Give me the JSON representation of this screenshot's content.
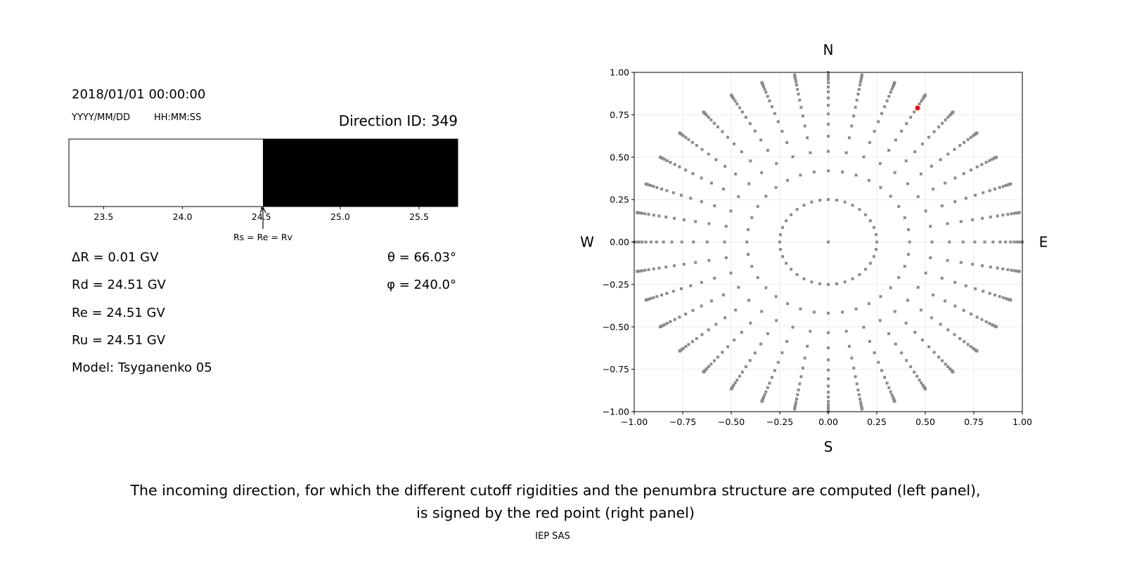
{
  "left_panel": {
    "datetime": "2018/01/01 00:00:00",
    "date_format": "YYYY/MM/DD",
    "time_format": "HH:MM:SS",
    "direction_id": "Direction ID: 349",
    "params": {
      "delta_r": "ΔR = 0.01 GV",
      "rd": "Rd = 24.51 GV",
      "re": "Re = 24.51 GV",
      "ru": "Ru = 24.51 GV",
      "model": "Model: Tsyganenko 05",
      "theta": "θ = 66.03°",
      "phi": "φ = 240.0°"
    }
  },
  "chart_data": [
    {
      "type": "bar",
      "description_role": "penumbra",
      "xlim": [
        23.28,
        25.745
      ],
      "xticks": [
        "23.5",
        "24.0",
        "24.5",
        "25.0",
        "25.5"
      ],
      "xtick_values": [
        23.5,
        24.0,
        24.5,
        25.0,
        25.5
      ],
      "segments": [
        {
          "from": 23.28,
          "to": 24.51,
          "color": "#ffffff"
        },
        {
          "from": 24.51,
          "to": 25.745,
          "color": "#000000"
        }
      ],
      "annotation": {
        "text": "Rs = Re = Rv",
        "x": 24.51
      }
    },
    {
      "type": "scatter",
      "xlim": [
        -1,
        1
      ],
      "ylim": [
        -1,
        1
      ],
      "grid": true,
      "xticks": [
        "−1.00",
        "−0.75",
        "−0.50",
        "−0.25",
        "0.00",
        "0.25",
        "0.50",
        "0.75",
        "1.00"
      ],
      "yticks": [
        "−1.00",
        "−0.75",
        "−0.50",
        "−0.25",
        "0.00",
        "0.25",
        "0.50",
        "0.75",
        "1.00"
      ],
      "tick_values": [
        -1,
        -0.75,
        -0.5,
        -0.25,
        0,
        0.25,
        0.5,
        0.75,
        1
      ],
      "compass": {
        "n": "N",
        "s": "S",
        "e": "E",
        "w": "W"
      },
      "directions_grid": {
        "azimuth_step_deg": 10,
        "zenith_deg": [
          14.5,
          24.8,
          32.3,
          38.6,
          44,
          49,
          53.7,
          58.1,
          62.3,
          66,
          70,
          73.5,
          77,
          80,
          83,
          85.5,
          87.5,
          90
        ],
        "center_point": true,
        "color": "#8c8c8c"
      },
      "selected_point": {
        "x": 0.46,
        "y": 0.79,
        "color": "#ff0000"
      }
    }
  ],
  "caption": {
    "line1": "The incoming direction, for which the different cutoff rigidities and the penumbra structure are computed (left panel),",
    "line2": "is signed by the red point (right panel)",
    "credit": "IEP SAS"
  }
}
